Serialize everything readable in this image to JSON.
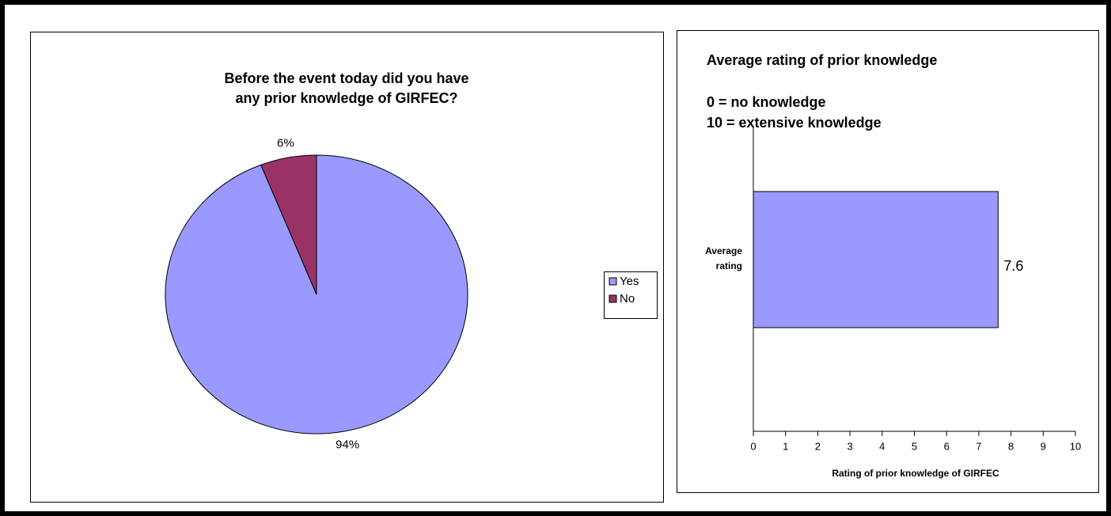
{
  "chart_data": [
    {
      "type": "pie",
      "title": [
        "Before the event today did you have",
        "any prior knowledge of GIRFEC?"
      ],
      "categories": [
        "Yes",
        "No"
      ],
      "values": [
        94,
        6
      ],
      "value_labels": [
        "94%",
        "6%"
      ],
      "colors": [
        "#9999ff",
        "#993366"
      ],
      "legend": "right"
    },
    {
      "type": "barh",
      "title": "Average rating of prior knowledge",
      "subtitle": [
        "0 = no knowledge",
        "10 = extensive knowledge"
      ],
      "categories": [
        "Average rating"
      ],
      "values": [
        7.6
      ],
      "color": "#9999ff",
      "xlabel": "Rating of prior knowledge of GIRFEC",
      "xlim": [
        0,
        10
      ],
      "xticks": [
        0,
        1,
        2,
        3,
        4,
        5,
        6,
        7,
        8,
        9,
        10
      ]
    }
  ]
}
